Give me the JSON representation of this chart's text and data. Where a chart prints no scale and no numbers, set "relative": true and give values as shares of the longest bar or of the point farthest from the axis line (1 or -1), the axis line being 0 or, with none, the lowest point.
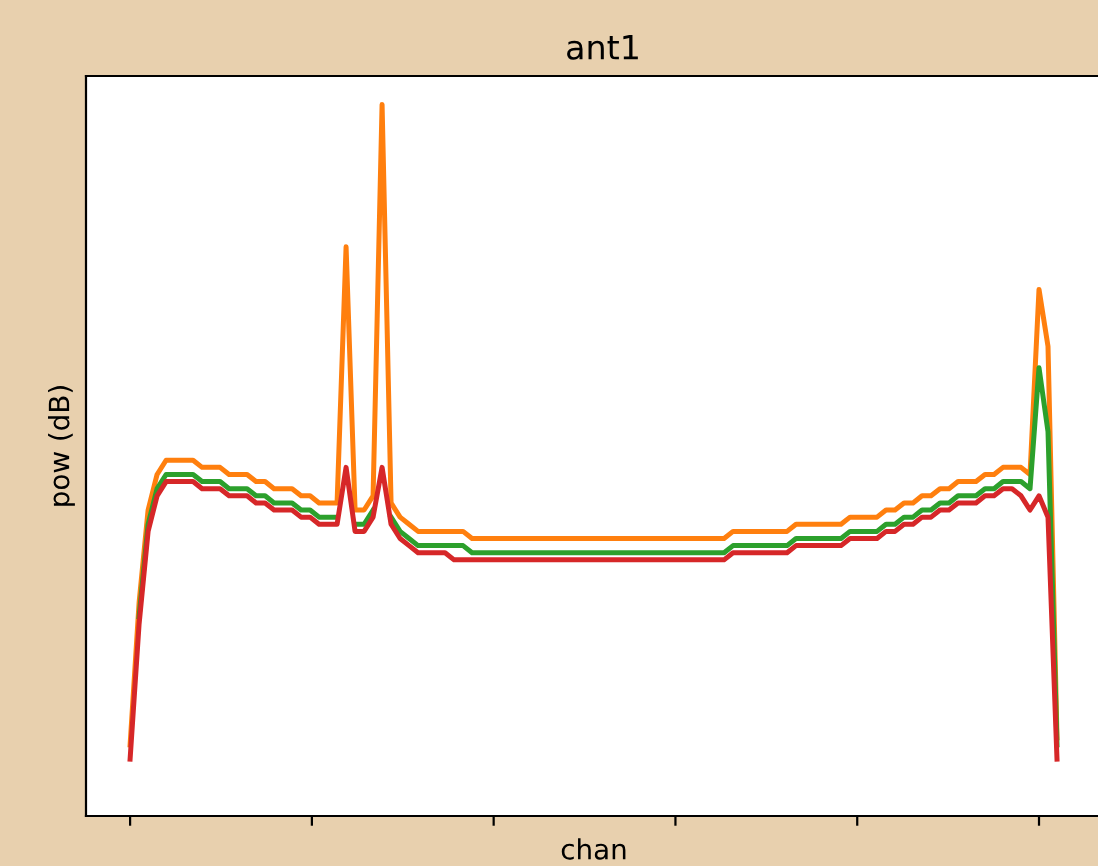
{
  "chart_data": {
    "type": "line",
    "title": "ant1",
    "xlabel": "chan",
    "ylabel": "pow (dB)",
    "relative": true,
    "tick_labels": false,
    "grid": false,
    "categories": [
      null,
      null,
      null,
      null,
      null,
      null,
      null,
      null,
      null,
      null,
      null,
      null,
      null,
      null,
      null,
      null,
      null,
      null,
      null,
      null,
      null,
      null,
      null,
      null,
      null,
      null,
      null,
      null,
      null,
      null,
      null,
      null,
      null,
      null,
      null,
      null,
      null,
      null,
      null,
      null,
      null,
      null,
      null,
      null,
      null,
      null,
      null,
      null,
      null,
      null,
      null,
      null,
      null,
      null,
      null,
      null,
      null,
      null,
      null,
      null,
      null,
      null,
      null,
      null,
      null,
      null,
      null,
      null,
      null,
      null,
      null,
      null,
      null,
      null,
      null,
      null,
      null,
      null,
      null,
      null,
      null,
      null,
      null,
      null,
      null,
      null,
      null,
      null,
      null,
      null,
      null,
      null,
      null,
      null,
      null,
      null,
      null,
      null,
      null,
      null,
      null,
      null,
      null,
      null
    ],
    "series": [
      {
        "color": "#ff7f0e",
        "values": [
          0.1,
          0.3,
          0.43,
          0.48,
          0.5,
          0.5,
          0.5,
          0.5,
          0.49,
          0.49,
          0.49,
          0.48,
          0.48,
          0.48,
          0.47,
          0.47,
          0.46,
          0.46,
          0.46,
          0.45,
          0.45,
          0.44,
          0.44,
          0.44,
          0.8,
          0.43,
          0.43,
          0.45,
          1.0,
          0.44,
          0.42,
          0.41,
          0.4,
          0.4,
          0.4,
          0.4,
          0.4,
          0.4,
          0.39,
          0.39,
          0.39,
          0.39,
          0.39,
          0.39,
          0.39,
          0.39,
          0.39,
          0.39,
          0.39,
          0.39,
          0.39,
          0.39,
          0.39,
          0.39,
          0.39,
          0.39,
          0.39,
          0.39,
          0.39,
          0.39,
          0.39,
          0.39,
          0.39,
          0.39,
          0.39,
          0.39,
          0.39,
          0.4,
          0.4,
          0.4,
          0.4,
          0.4,
          0.4,
          0.4,
          0.41,
          0.41,
          0.41,
          0.41,
          0.41,
          0.41,
          0.42,
          0.42,
          0.42,
          0.42,
          0.43,
          0.43,
          0.44,
          0.44,
          0.45,
          0.45,
          0.46,
          0.46,
          0.47,
          0.47,
          0.47,
          0.48,
          0.48,
          0.49,
          0.49,
          0.49,
          0.48,
          0.74,
          0.66,
          0.11
        ]
      },
      {
        "color": "#2ca02c",
        "values": [
          null,
          0.28,
          0.41,
          0.46,
          0.48,
          0.48,
          0.48,
          0.48,
          0.47,
          0.47,
          0.47,
          0.46,
          0.46,
          0.46,
          0.45,
          0.45,
          0.44,
          0.44,
          0.44,
          0.43,
          0.43,
          0.42,
          0.42,
          0.42,
          null,
          0.41,
          0.41,
          0.43,
          null,
          0.42,
          0.4,
          0.39,
          0.38,
          0.38,
          0.38,
          0.38,
          0.38,
          0.38,
          0.37,
          0.37,
          0.37,
          0.37,
          0.37,
          0.37,
          0.37,
          0.37,
          0.37,
          0.37,
          0.37,
          0.37,
          0.37,
          0.37,
          0.37,
          0.37,
          0.37,
          0.37,
          0.37,
          0.37,
          0.37,
          0.37,
          0.37,
          0.37,
          0.37,
          0.37,
          0.37,
          0.37,
          0.37,
          0.38,
          0.38,
          0.38,
          0.38,
          0.38,
          0.38,
          0.38,
          0.39,
          0.39,
          0.39,
          0.39,
          0.39,
          0.39,
          0.4,
          0.4,
          0.4,
          0.4,
          0.41,
          0.41,
          0.42,
          0.42,
          0.43,
          0.43,
          0.44,
          0.44,
          0.45,
          0.45,
          0.45,
          0.46,
          0.46,
          0.47,
          0.47,
          0.47,
          0.46,
          0.63,
          0.54,
          0.1
        ]
      },
      {
        "color": "#d62728",
        "values": [
          0.08,
          0.27,
          0.4,
          0.45,
          0.47,
          0.47,
          0.47,
          0.47,
          0.46,
          0.46,
          0.46,
          0.45,
          0.45,
          0.45,
          0.44,
          0.44,
          0.43,
          0.43,
          0.43,
          0.42,
          0.42,
          0.41,
          0.41,
          0.41,
          0.49,
          0.4,
          0.4,
          0.42,
          0.49,
          0.41,
          0.39,
          0.38,
          0.37,
          0.37,
          0.37,
          0.37,
          0.36,
          0.36,
          0.36,
          0.36,
          0.36,
          0.36,
          0.36,
          0.36,
          0.36,
          0.36,
          0.36,
          0.36,
          0.36,
          0.36,
          0.36,
          0.36,
          0.36,
          0.36,
          0.36,
          0.36,
          0.36,
          0.36,
          0.36,
          0.36,
          0.36,
          0.36,
          0.36,
          0.36,
          0.36,
          0.36,
          0.36,
          0.37,
          0.37,
          0.37,
          0.37,
          0.37,
          0.37,
          0.37,
          0.38,
          0.38,
          0.38,
          0.38,
          0.38,
          0.38,
          0.39,
          0.39,
          0.39,
          0.39,
          0.4,
          0.4,
          0.41,
          0.41,
          0.42,
          0.42,
          0.43,
          0.43,
          0.44,
          0.44,
          0.44,
          0.45,
          0.45,
          0.46,
          0.46,
          0.45,
          0.43,
          0.45,
          0.42,
          0.08
        ]
      }
    ]
  }
}
